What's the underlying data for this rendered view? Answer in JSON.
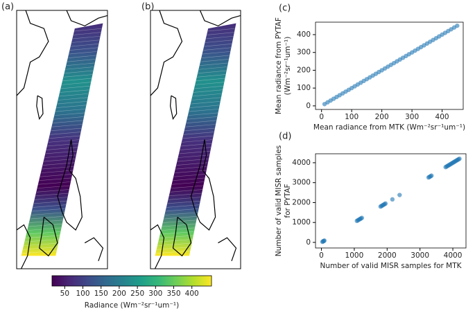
{
  "chart_data": [
    {
      "type": "map",
      "panel_label": "(a)"
    },
    {
      "type": "map",
      "panel_label": "(b)"
    },
    {
      "type": "scatter",
      "panel_label": "(c)",
      "color": "#1f77b4",
      "xlabel": "Mean radiance from MTK (Wm⁻²sr⁻¹um⁻¹)",
      "ylabel": [
        "Mean radiance from PYTAF",
        "(Wm⁻²sr⁻¹um⁻¹)"
      ],
      "x": [
        10,
        20,
        30,
        40,
        50,
        60,
        70,
        80,
        90,
        100,
        110,
        120,
        130,
        140,
        150,
        160,
        170,
        180,
        190,
        200,
        210,
        220,
        230,
        240,
        250,
        260,
        270,
        280,
        290,
        300,
        310,
        320,
        330,
        340,
        350,
        360,
        370,
        380,
        390,
        400,
        410,
        420,
        430,
        440,
        450
      ],
      "values": [
        10,
        20,
        30,
        40,
        50,
        60,
        70,
        80,
        90,
        100,
        110,
        120,
        130,
        140,
        150,
        160,
        170,
        180,
        190,
        200,
        210,
        220,
        230,
        240,
        250,
        260,
        270,
        280,
        290,
        300,
        310,
        320,
        330,
        340,
        350,
        360,
        370,
        380,
        390,
        400,
        410,
        420,
        430,
        440,
        450
      ],
      "xlim": [
        -20,
        470
      ],
      "ylim": [
        -20,
        470
      ],
      "xticks": [
        0,
        100,
        200,
        300,
        400
      ],
      "yticks": [
        0,
        100,
        200,
        300,
        400
      ]
    },
    {
      "type": "scatter",
      "panel_label": "(d)",
      "color": "#1f77b4",
      "xlabel": "Number of valid MISR samples for MTK",
      "ylabel": [
        "Number of valid MISR samples",
        "for PYTAF"
      ],
      "x": [
        30,
        50,
        70,
        90,
        1080,
        1110,
        1140,
        1170,
        1200,
        1230,
        1800,
        1830,
        1860,
        1890,
        1920,
        1950,
        2160,
        2380,
        3260,
        3290,
        3320,
        3350,
        3780,
        3810,
        3840,
        3870,
        3900,
        3930,
        3960,
        3990,
        4020,
        4050,
        4080,
        4110,
        4140,
        4170,
        4200
      ],
      "values": [
        30,
        50,
        70,
        90,
        1080,
        1110,
        1140,
        1170,
        1200,
        1230,
        1800,
        1830,
        1860,
        1890,
        1920,
        1950,
        2160,
        2380,
        3260,
        3290,
        3320,
        3350,
        3780,
        3810,
        3840,
        3870,
        3900,
        3930,
        3960,
        3990,
        4020,
        4050,
        4080,
        4110,
        4140,
        4170,
        4200
      ],
      "xlim": [
        -180,
        4400
      ],
      "ylim": [
        -280,
        4450
      ],
      "xticks": [
        0,
        1000,
        2000,
        3000,
        4000
      ],
      "yticks": [
        0,
        1000,
        2000,
        3000,
        4000
      ]
    },
    {
      "type": "colorbar",
      "label": "Radiance (Wm⁻²sr⁻¹um⁻¹)",
      "colors": [
        "#440154",
        "#482878",
        "#3e4a89",
        "#31688e",
        "#26828e",
        "#1f9e89",
        "#35b779",
        "#6ece58",
        "#b5de2b",
        "#fde725"
      ],
      "xlim": [
        15,
        454
      ],
      "xticks": [
        50,
        100,
        150,
        200,
        250,
        300,
        350,
        400
      ]
    }
  ]
}
